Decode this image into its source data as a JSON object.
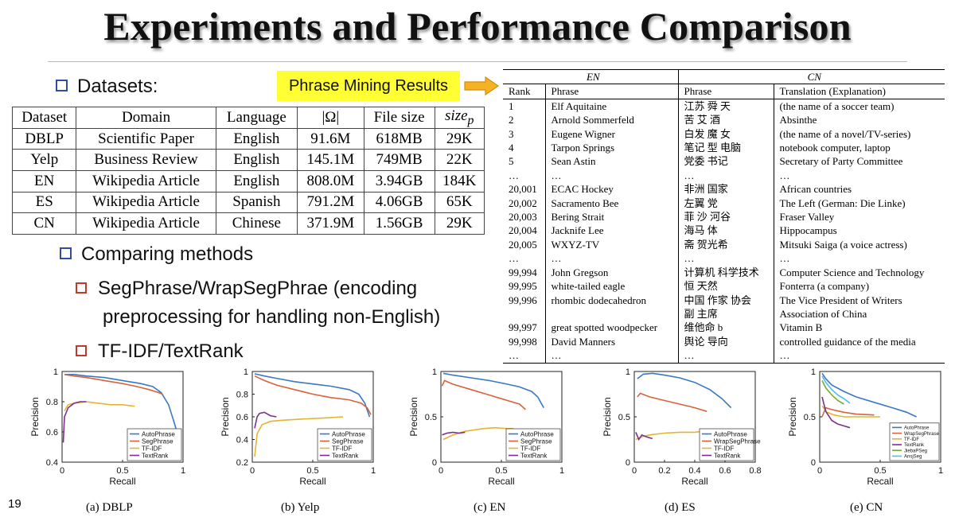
{
  "slide": {
    "title": "Experiments and Performance Comparison",
    "page_number": "19"
  },
  "bullets": {
    "datasets": "Datasets:",
    "comparing": "Comparing methods",
    "sub1_line1": "SegPhrase/WrapSegPhrae (encoding",
    "sub1_line2": "preprocessing for handling non-English)",
    "sub2": "TF-IDF/TextRank"
  },
  "callout": {
    "label": "Phrase Mining Results",
    "arrow_color": "#f5a623"
  },
  "datasets_table": {
    "headers": [
      "Dataset",
      "Domain",
      "Language",
      "|Ω|",
      "File size",
      "size"
    ],
    "size_subscript": "p",
    "rows": [
      [
        "DBLP",
        "Scientific Paper",
        "English",
        "91.6M",
        "618MB",
        "29K"
      ],
      [
        "Yelp",
        "Business Review",
        "English",
        "145.1M",
        "749MB",
        "22K"
      ],
      [
        "EN",
        "Wikipedia Article",
        "English",
        "808.0M",
        "3.94GB",
        "184K"
      ],
      [
        "ES",
        "Wikipedia Article",
        "Spanish",
        "791.2M",
        "4.06GB",
        "65K"
      ],
      [
        "CN",
        "Wikipedia Article",
        "Chinese",
        "371.9M",
        "1.56GB",
        "29K"
      ]
    ]
  },
  "phrase_table": {
    "group_en": "EN",
    "group_cn": "CN",
    "headers": [
      "Rank",
      "Phrase",
      "Phrase",
      "Translation (Explanation)"
    ],
    "rows": [
      [
        "1",
        "Elf Aquitaine",
        "江苏 舜 天",
        "(the name of a soccer team)"
      ],
      [
        "2",
        "Arnold Sommerfeld",
        "苦 艾 酒",
        "Absinthe"
      ],
      [
        "3",
        "Eugene Wigner",
        "白发 魔 女",
        "(the name of a novel/TV-series)"
      ],
      [
        "4",
        "Tarpon Springs",
        "笔记 型 电脑",
        "notebook computer, laptop"
      ],
      [
        "5",
        "Sean Astin",
        "党委 书记",
        "Secretary of Party Committee"
      ],
      [
        "…",
        "…",
        "…",
        "…"
      ],
      [
        "20,001",
        "ECAC Hockey",
        "非洲 国家",
        "African countries"
      ],
      [
        "20,002",
        "Sacramento Bee",
        "左翼 党",
        "The Left (German: Die Linke)"
      ],
      [
        "20,003",
        "Bering Strait",
        "菲 沙 河谷",
        "Fraser Valley"
      ],
      [
        "20,004",
        "Jacknife Lee",
        "海马 体",
        "Hippocampus"
      ],
      [
        "20,005",
        "WXYZ-TV",
        "斋 贺光希",
        "Mitsuki Saiga (a voice actress)"
      ],
      [
        "…",
        "…",
        "…",
        "…"
      ],
      [
        "99,994",
        "John Gregson",
        "计算机 科学技术",
        "Computer Science and Technology"
      ],
      [
        "99,995",
        "white-tailed eagle",
        "恒 天然",
        "Fonterra (a company)"
      ],
      [
        "99,996",
        "rhombic dodecahedron",
        "中国 作家 协会",
        "The Vice President of Writers"
      ],
      [
        "",
        "",
        "副 主席",
        "Association of China"
      ],
      [
        "99,997",
        "great spotted woodpecker",
        "维他命 b",
        "Vitamin B"
      ],
      [
        "99,998",
        "David Manners",
        "舆论 导向",
        "controlled guidance of the media"
      ],
      [
        "…",
        "…",
        "…",
        "…"
      ]
    ]
  },
  "chart_data": [
    {
      "type": "line",
      "caption": "(a) DBLP",
      "xlabel": "Recall",
      "ylabel": "Precision",
      "xlim": [
        0,
        1
      ],
      "ylim": [
        0.4,
        1
      ],
      "xticks": [
        "0",
        "0.5",
        "1"
      ],
      "xtick_values": [
        0,
        0.5,
        1
      ],
      "yticks": [
        "0.4",
        "0.6",
        "0.8",
        "1"
      ],
      "ytick_values": [
        0.4,
        0.6,
        0.8,
        1
      ],
      "legend": "bottom-right",
      "series": [
        {
          "name": "AutoPhrase",
          "color": "#3b78c4",
          "points": [
            [
              0.02,
              0.98
            ],
            [
              0.1,
              0.98
            ],
            [
              0.2,
              0.97
            ],
            [
              0.35,
              0.96
            ],
            [
              0.5,
              0.94
            ],
            [
              0.65,
              0.92
            ],
            [
              0.75,
              0.9
            ],
            [
              0.82,
              0.86
            ],
            [
              0.88,
              0.78
            ],
            [
              0.92,
              0.68
            ],
            [
              0.95,
              0.6
            ]
          ]
        },
        {
          "name": "SegPhrase",
          "color": "#d9623b",
          "points": [
            [
              0.02,
              0.98
            ],
            [
              0.1,
              0.97
            ],
            [
              0.2,
              0.96
            ],
            [
              0.35,
              0.94
            ],
            [
              0.5,
              0.92
            ],
            [
              0.62,
              0.9
            ],
            [
              0.72,
              0.88
            ],
            [
              0.8,
              0.86
            ],
            [
              0.83,
              0.85
            ]
          ]
        },
        {
          "name": "TF-IDF",
          "color": "#e3b52f",
          "points": [
            [
              0.02,
              0.74
            ],
            [
              0.05,
              0.78
            ],
            [
              0.1,
              0.79
            ],
            [
              0.2,
              0.8
            ],
            [
              0.3,
              0.79
            ],
            [
              0.4,
              0.78
            ],
            [
              0.5,
              0.78
            ],
            [
              0.6,
              0.77
            ]
          ]
        },
        {
          "name": "TextRank",
          "color": "#7e2f8e",
          "points": [
            [
              0.01,
              0.53
            ],
            [
              0.02,
              0.7
            ],
            [
              0.05,
              0.76
            ],
            [
              0.1,
              0.79
            ],
            [
              0.15,
              0.8
            ],
            [
              0.2,
              0.8
            ]
          ]
        }
      ]
    },
    {
      "type": "line",
      "caption": "(b) Yelp",
      "xlabel": "Recall",
      "ylabel": "Precision",
      "xlim": [
        0,
        1
      ],
      "ylim": [
        0.2,
        1
      ],
      "xticks": [
        "0",
        "0.5",
        "1"
      ],
      "xtick_values": [
        0,
        0.5,
        1
      ],
      "yticks": [
        "0.2",
        "0.4",
        "0.6",
        "0.8",
        "1"
      ],
      "ytick_values": [
        0.2,
        0.4,
        0.6,
        0.8,
        1
      ],
      "legend": "bottom-right",
      "series": [
        {
          "name": "AutoPhrase",
          "color": "#3b78c4",
          "points": [
            [
              0.02,
              0.98
            ],
            [
              0.1,
              0.96
            ],
            [
              0.2,
              0.94
            ],
            [
              0.35,
              0.91
            ],
            [
              0.5,
              0.89
            ],
            [
              0.65,
              0.87
            ],
            [
              0.8,
              0.84
            ],
            [
              0.88,
              0.8
            ],
            [
              0.93,
              0.72
            ],
            [
              0.97,
              0.6
            ]
          ]
        },
        {
          "name": "SegPhrase",
          "color": "#d9623b",
          "points": [
            [
              0.02,
              0.96
            ],
            [
              0.1,
              0.92
            ],
            [
              0.2,
              0.88
            ],
            [
              0.35,
              0.84
            ],
            [
              0.5,
              0.8
            ],
            [
              0.65,
              0.77
            ],
            [
              0.8,
              0.75
            ],
            [
              0.9,
              0.72
            ],
            [
              0.95,
              0.68
            ],
            [
              0.98,
              0.62
            ]
          ]
        },
        {
          "name": "TF-IDF",
          "color": "#e3b52f",
          "points": [
            [
              0.02,
              0.25
            ],
            [
              0.04,
              0.45
            ],
            [
              0.08,
              0.53
            ],
            [
              0.15,
              0.56
            ],
            [
              0.25,
              0.57
            ],
            [
              0.4,
              0.58
            ],
            [
              0.6,
              0.59
            ],
            [
              0.75,
              0.6
            ]
          ]
        },
        {
          "name": "TextRank",
          "color": "#7e2f8e",
          "points": [
            [
              0.02,
              0.5
            ],
            [
              0.04,
              0.6
            ],
            [
              0.06,
              0.63
            ],
            [
              0.1,
              0.64
            ],
            [
              0.15,
              0.61
            ],
            [
              0.2,
              0.6
            ]
          ]
        }
      ]
    },
    {
      "type": "line",
      "caption": "(c) EN",
      "xlabel": "Recall",
      "ylabel": "Precision",
      "xlim": [
        0,
        1
      ],
      "ylim": [
        0,
        1
      ],
      "xticks": [
        "0",
        "0.5",
        "1"
      ],
      "xtick_values": [
        0,
        0.5,
        1
      ],
      "yticks": [
        "0",
        "0.5",
        "1"
      ],
      "ytick_values": [
        0,
        0.5,
        1
      ],
      "legend": "bottom-right",
      "series": [
        {
          "name": "AutoPhrase",
          "color": "#3b78c4",
          "points": [
            [
              0.02,
              0.98
            ],
            [
              0.1,
              0.96
            ],
            [
              0.25,
              0.93
            ],
            [
              0.4,
              0.9
            ],
            [
              0.55,
              0.86
            ],
            [
              0.65,
              0.83
            ],
            [
              0.75,
              0.78
            ],
            [
              0.8,
              0.72
            ],
            [
              0.85,
              0.6
            ]
          ]
        },
        {
          "name": "SegPhrase",
          "color": "#d9623b",
          "points": [
            [
              0.01,
              0.84
            ],
            [
              0.03,
              0.9
            ],
            [
              0.1,
              0.86
            ],
            [
              0.25,
              0.8
            ],
            [
              0.4,
              0.74
            ],
            [
              0.55,
              0.68
            ],
            [
              0.65,
              0.64
            ],
            [
              0.7,
              0.58
            ]
          ]
        },
        {
          "name": "TF-IDF",
          "color": "#e3b52f",
          "points": [
            [
              0.02,
              0.25
            ],
            [
              0.1,
              0.3
            ],
            [
              0.2,
              0.34
            ],
            [
              0.35,
              0.37
            ],
            [
              0.45,
              0.38
            ],
            [
              0.55,
              0.37
            ],
            [
              0.6,
              0.37
            ]
          ]
        },
        {
          "name": "TextRank",
          "color": "#7e2f8e",
          "points": [
            [
              0.01,
              0.3
            ],
            [
              0.05,
              0.32
            ],
            [
              0.1,
              0.33
            ],
            [
              0.15,
              0.32
            ],
            [
              0.2,
              0.33
            ]
          ]
        }
      ]
    },
    {
      "type": "line",
      "caption": "(d) ES",
      "xlabel": "Recall",
      "ylabel": "Precision",
      "xlim": [
        0,
        0.8
      ],
      "ylim": [
        0,
        1
      ],
      "xticks": [
        "0",
        "0.2",
        "0.4",
        "0.6",
        "0.8"
      ],
      "xtick_values": [
        0,
        0.2,
        0.4,
        0.6,
        0.8
      ],
      "yticks": [
        "0",
        "0.5",
        "1"
      ],
      "ytick_values": [
        0,
        0.5,
        1
      ],
      "legend": "bottom-right",
      "series": [
        {
          "name": "AutoPhrase",
          "color": "#3b78c4",
          "points": [
            [
              0.02,
              0.92
            ],
            [
              0.06,
              0.97
            ],
            [
              0.12,
              0.98
            ],
            [
              0.2,
              0.96
            ],
            [
              0.3,
              0.93
            ],
            [
              0.4,
              0.88
            ],
            [
              0.5,
              0.8
            ],
            [
              0.58,
              0.7
            ],
            [
              0.64,
              0.6
            ]
          ]
        },
        {
          "name": "WrapSegPhrase",
          "color": "#d9623b",
          "points": [
            [
              0.02,
              0.72
            ],
            [
              0.04,
              0.76
            ],
            [
              0.1,
              0.72
            ],
            [
              0.2,
              0.68
            ],
            [
              0.3,
              0.64
            ],
            [
              0.4,
              0.6
            ],
            [
              0.48,
              0.56
            ]
          ]
        },
        {
          "name": "TF-IDF",
          "color": "#e3b52f",
          "points": [
            [
              0.01,
              0.25
            ],
            [
              0.05,
              0.28
            ],
            [
              0.1,
              0.3
            ],
            [
              0.2,
              0.32
            ],
            [
              0.3,
              0.33
            ],
            [
              0.4,
              0.33
            ],
            [
              0.45,
              0.34
            ]
          ]
        },
        {
          "name": "TextRank",
          "color": "#7e2f8e",
          "points": [
            [
              0.01,
              0.33
            ],
            [
              0.03,
              0.25
            ],
            [
              0.05,
              0.3
            ],
            [
              0.08,
              0.28
            ],
            [
              0.12,
              0.26
            ]
          ]
        }
      ]
    },
    {
      "type": "line",
      "caption": "(e) CN",
      "xlabel": "Recall",
      "ylabel": "Precision",
      "xlim": [
        0,
        1
      ],
      "ylim": [
        0,
        1
      ],
      "xticks": [
        "0",
        "0.5",
        "1"
      ],
      "xtick_values": [
        0,
        0.5,
        1
      ],
      "yticks": [
        "0",
        "0.5",
        "1"
      ],
      "ytick_values": [
        0,
        0.5,
        1
      ],
      "legend": "bottom-right",
      "series": [
        {
          "name": "AutoPhrase",
          "color": "#3b78c4",
          "points": [
            [
              0.02,
              0.98
            ],
            [
              0.05,
              0.92
            ],
            [
              0.1,
              0.85
            ],
            [
              0.2,
              0.78
            ],
            [
              0.3,
              0.72
            ],
            [
              0.45,
              0.66
            ],
            [
              0.6,
              0.6
            ],
            [
              0.72,
              0.55
            ],
            [
              0.8,
              0.5
            ]
          ]
        },
        {
          "name": "WrapSegPhrase",
          "color": "#d9623b",
          "points": [
            [
              0.02,
              0.5
            ],
            [
              0.05,
              0.6
            ],
            [
              0.1,
              0.58
            ],
            [
              0.2,
              0.55
            ],
            [
              0.3,
              0.53
            ],
            [
              0.45,
              0.52
            ]
          ]
        },
        {
          "name": "TF-IDF",
          "color": "#e3b52f",
          "points": [
            [
              0.02,
              0.62
            ],
            [
              0.06,
              0.55
            ],
            [
              0.12,
              0.52
            ],
            [
              0.2,
              0.5
            ],
            [
              0.35,
              0.5
            ],
            [
              0.5,
              0.5
            ]
          ]
        },
        {
          "name": "TextRank",
          "color": "#7e2f8e",
          "points": [
            [
              0.02,
              0.72
            ],
            [
              0.05,
              0.56
            ],
            [
              0.1,
              0.46
            ],
            [
              0.15,
              0.42
            ],
            [
              0.2,
              0.4
            ],
            [
              0.25,
              0.38
            ]
          ]
        },
        {
          "name": "JiebaPSeg",
          "color": "#77ac30",
          "points": [
            [
              0.02,
              0.9
            ],
            [
              0.05,
              0.82
            ],
            [
              0.1,
              0.74
            ],
            [
              0.15,
              0.68
            ],
            [
              0.2,
              0.64
            ]
          ]
        },
        {
          "name": "AnsjSeg",
          "color": "#4dbeee",
          "points": [
            [
              0.02,
              0.95
            ],
            [
              0.05,
              0.88
            ],
            [
              0.1,
              0.8
            ],
            [
              0.15,
              0.74
            ],
            [
              0.2,
              0.7
            ],
            [
              0.25,
              0.65
            ]
          ]
        }
      ]
    }
  ]
}
